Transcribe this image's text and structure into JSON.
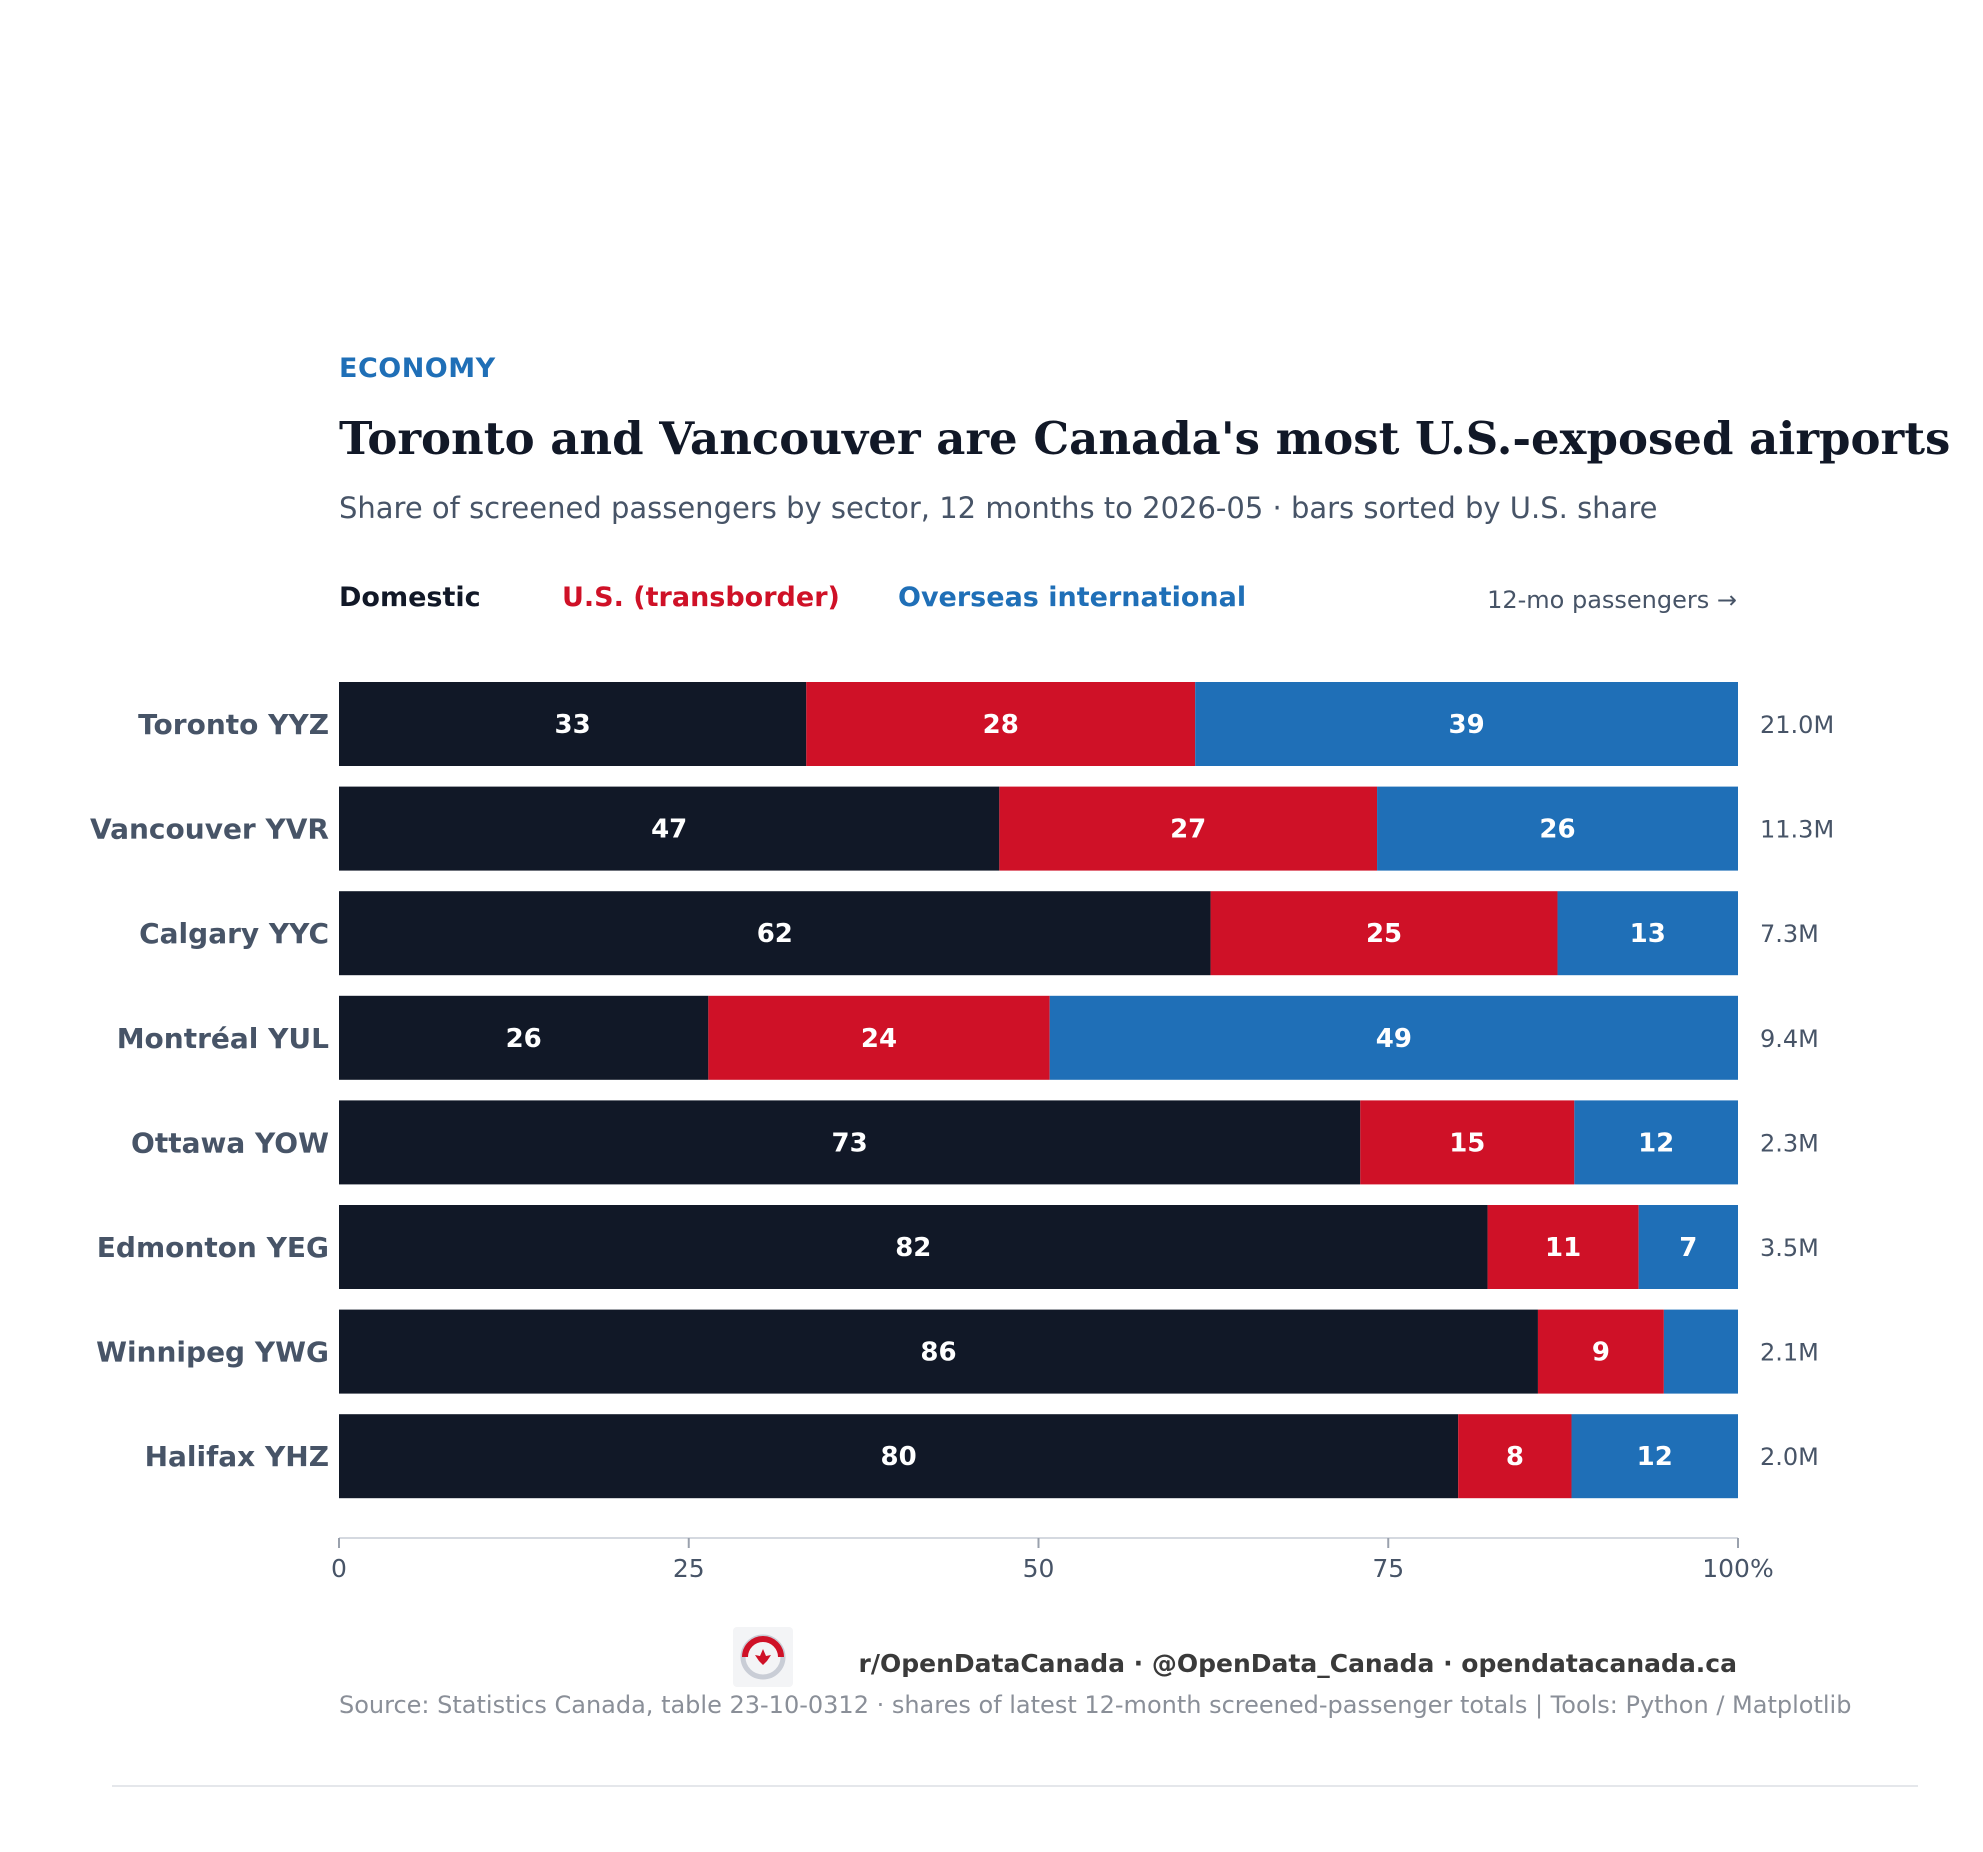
{
  "kicker": "ECONOMY",
  "title": "Toronto and Vancouver are Canada's most U.S.-exposed airports",
  "subtitle": "Share of screened passengers by sector, 12 months to 2026-05  ·  bars sorted by U.S. share",
  "legend": {
    "domestic": "Domestic",
    "us": "U.S. (transborder)",
    "overseas": "Overseas international",
    "right_note": "12-mo passengers →"
  },
  "footer": {
    "handles": "r/OpenDataCanada  ·  @OpenData_Canada  ·  opendatacanada.ca",
    "source": "Source: Statistics Canada, table 23-10-0312  ·  shares of latest 12-month screened-passenger totals  |  Tools: Python / Matplotlib"
  },
  "colors": {
    "domestic": "#111827",
    "us": "#cf1127",
    "overseas": "#1f6fb7",
    "label": "#475467"
  },
  "chart_data": {
    "type": "bar",
    "orientation": "horizontal",
    "stacked": true,
    "categories": [
      "Toronto  YYZ",
      "Vancouver  YVR",
      "Calgary  YYC",
      "Montréal  YUL",
      "Ottawa  YOW",
      "Edmonton  YEG",
      "Winnipeg  YWG",
      "Halifax  YHZ"
    ],
    "series": [
      {
        "name": "Domestic",
        "values": [
          33.4,
          47.2,
          62.3,
          26.4,
          73.0,
          82.1,
          85.7,
          80.0
        ],
        "labels": [
          "33",
          "47",
          "62",
          "26",
          "73",
          "82",
          "86",
          "80"
        ]
      },
      {
        "name": "U.S. (transborder)",
        "values": [
          27.8,
          27.0,
          24.8,
          24.4,
          15.3,
          10.8,
          9.0,
          8.1
        ],
        "labels": [
          "28",
          "27",
          "25",
          "24",
          "15",
          "11",
          "9",
          "8"
        ]
      },
      {
        "name": "Overseas international",
        "values": [
          38.8,
          25.8,
          12.9,
          49.2,
          11.7,
          7.1,
          5.3,
          11.9
        ],
        "labels": [
          "39",
          "26",
          "13",
          "49",
          "12",
          "7",
          "",
          "12"
        ]
      }
    ],
    "passengers": [
      "21.0M",
      "11.3M",
      "7.3M",
      "9.4M",
      "2.3M",
      "3.5M",
      "2.1M",
      "2.0M"
    ],
    "xlim": [
      0,
      100
    ],
    "xticks": [
      0,
      25,
      50,
      75,
      100
    ],
    "xtick_labels": [
      "0",
      "25",
      "50",
      "75",
      "100%"
    ]
  }
}
